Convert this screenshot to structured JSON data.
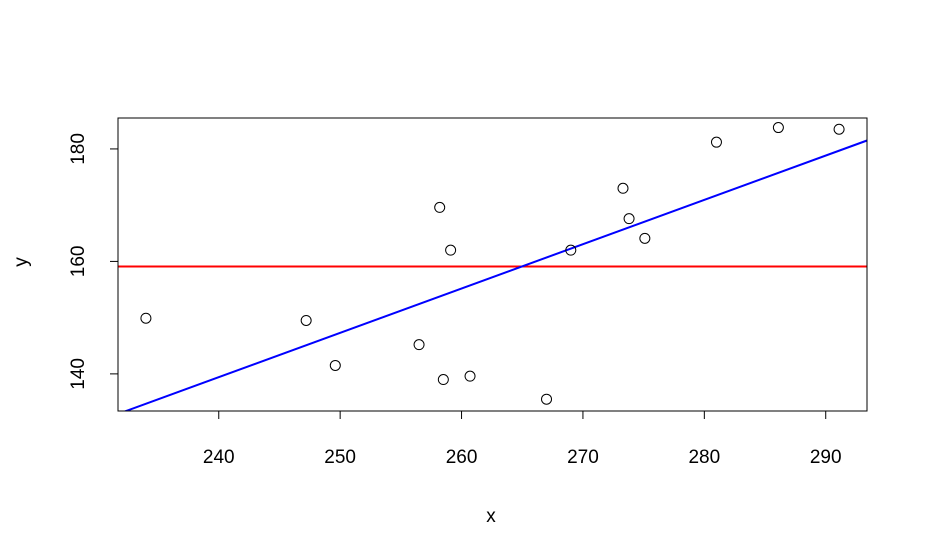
{
  "chart_data": {
    "type": "scatter",
    "title": "",
    "xlabel": "x",
    "ylabel": "y",
    "xlim": [
      231.7,
      293.4
    ],
    "ylim": [
      133.4,
      185.5
    ],
    "xticks": [
      240,
      250,
      260,
      270,
      280,
      290
    ],
    "yticks": [
      140,
      160,
      180
    ],
    "grid": false,
    "points": [
      {
        "x": 234.0,
        "y": 149.9
      },
      {
        "x": 247.2,
        "y": 149.5
      },
      {
        "x": 249.6,
        "y": 141.5
      },
      {
        "x": 256.5,
        "y": 145.2
      },
      {
        "x": 258.2,
        "y": 169.6
      },
      {
        "x": 258.5,
        "y": 139.0
      },
      {
        "x": 259.1,
        "y": 162.0
      },
      {
        "x": 260.7,
        "y": 139.6
      },
      {
        "x": 267.0,
        "y": 135.5
      },
      {
        "x": 269.0,
        "y": 162.0
      },
      {
        "x": 273.3,
        "y": 173.0
      },
      {
        "x": 273.8,
        "y": 167.6
      },
      {
        "x": 275.1,
        "y": 164.1
      },
      {
        "x": 281.0,
        "y": 181.2
      },
      {
        "x": 286.1,
        "y": 183.8
      },
      {
        "x": 291.1,
        "y": 183.5
      }
    ],
    "lines": [
      {
        "kind": "horizontal",
        "y": 159.1,
        "color": "#ff0000"
      },
      {
        "kind": "regression",
        "intercept": -49.7,
        "slope": 0.788,
        "color": "#0000ff"
      }
    ]
  }
}
